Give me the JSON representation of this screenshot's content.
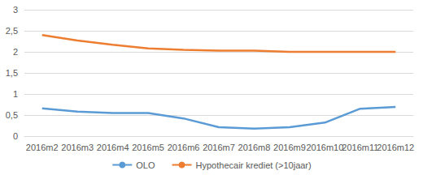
{
  "chart_data": {
    "type": "line",
    "categories": [
      "2016m2",
      "2016m3",
      "2016m4",
      "2016m5",
      "2016m6",
      "2016m7",
      "2016m8",
      "2016m9",
      "2016m10",
      "2016m11",
      "2016m12"
    ],
    "series": [
      {
        "name": "OLO",
        "color": "#5b9bd5",
        "values": [
          0.66,
          0.58,
          0.55,
          0.55,
          0.42,
          0.21,
          0.18,
          0.21,
          0.32,
          0.65,
          0.69
        ]
      },
      {
        "name": "Hypothecair krediet (>10jaar)",
        "color": "#ed7d31",
        "values": [
          2.4,
          2.27,
          2.17,
          2.08,
          2.05,
          2.03,
          2.03,
          2.0,
          2.0,
          2.0,
          2.0
        ]
      }
    ],
    "ylim": [
      0,
      3
    ],
    "yticks": [
      0,
      {
        "value": 0.5,
        "label": "0,5"
      },
      1,
      {
        "value": 1.5,
        "label": "1,5"
      },
      2,
      {
        "value": 2.5,
        "label": "2,5"
      },
      3
    ],
    "grid": true,
    "legend": "bottom"
  }
}
